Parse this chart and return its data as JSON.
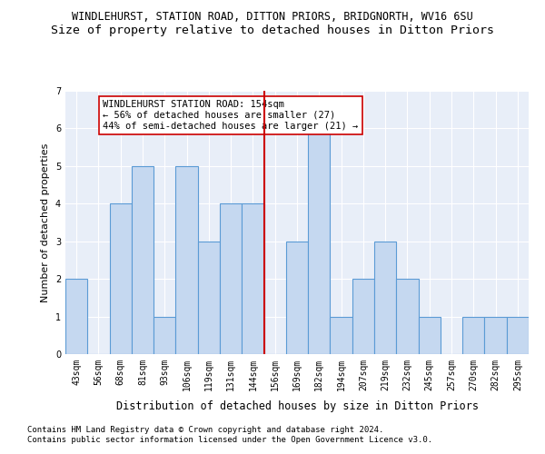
{
  "title": "WINDLEHURST, STATION ROAD, DITTON PRIORS, BRIDGNORTH, WV16 6SU",
  "subtitle": "Size of property relative to detached houses in Ditton Priors",
  "xlabel": "Distribution of detached houses by size in Ditton Priors",
  "ylabel": "Number of detached properties",
  "categories": [
    "43sqm",
    "56sqm",
    "68sqm",
    "81sqm",
    "93sqm",
    "106sqm",
    "119sqm",
    "131sqm",
    "144sqm",
    "156sqm",
    "169sqm",
    "182sqm",
    "194sqm",
    "207sqm",
    "219sqm",
    "232sqm",
    "245sqm",
    "257sqm",
    "270sqm",
    "282sqm",
    "295sqm"
  ],
  "values": [
    2,
    0,
    4,
    5,
    1,
    5,
    3,
    4,
    4,
    0,
    3,
    6,
    1,
    2,
    3,
    2,
    1,
    0,
    1,
    1,
    1
  ],
  "bar_color": "#c5d8f0",
  "bar_edge_color": "#5b9bd5",
  "bar_edge_width": 0.8,
  "reference_line_color": "#cc0000",
  "annotation_text_line1": "WINDLEHURST STATION ROAD: 154sqm",
  "annotation_text_line2": "← 56% of detached houses are smaller (27)",
  "annotation_text_line3": "44% of semi-detached houses are larger (21) →",
  "annotation_box_color": "#ffffff",
  "annotation_box_edge": "#cc0000",
  "ylim": [
    0,
    7
  ],
  "yticks": [
    0,
    1,
    2,
    3,
    4,
    5,
    6,
    7
  ],
  "footer_line1": "Contains HM Land Registry data © Crown copyright and database right 2024.",
  "footer_line2": "Contains public sector information licensed under the Open Government Licence v3.0.",
  "background_color": "#e8eef8",
  "title_fontsize": 8.5,
  "subtitle_fontsize": 9.5,
  "xlabel_fontsize": 8.5,
  "ylabel_fontsize": 8,
  "tick_fontsize": 7,
  "footer_fontsize": 6.5,
  "annotation_fontsize": 7.5
}
